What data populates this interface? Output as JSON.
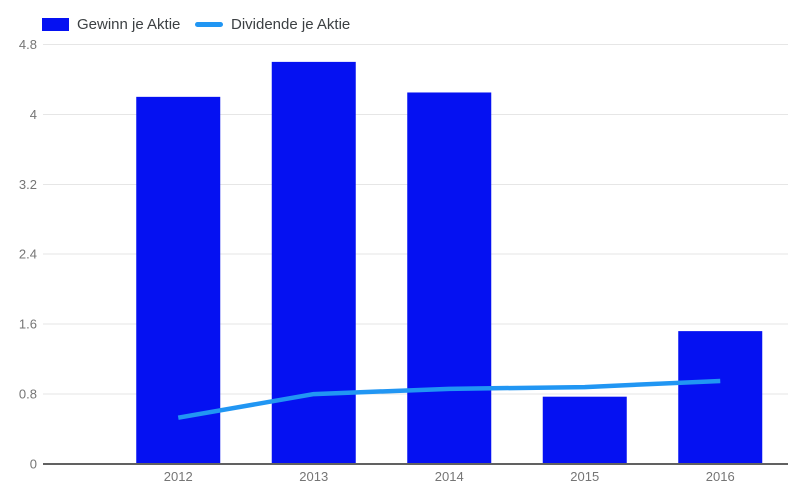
{
  "legend": {
    "items": [
      {
        "label": "Gewinn je Aktie",
        "swatch": "square",
        "color": "#0511f2"
      },
      {
        "label": "Dividende je Aktie",
        "swatch": "line",
        "color": "#2196f3"
      }
    ]
  },
  "chart_data": {
    "type": "combo-bar-line",
    "title": "",
    "xlabel": "",
    "ylabel": "",
    "categories": [
      "2012",
      "2013",
      "2014",
      "2015",
      "2016"
    ],
    "series": [
      {
        "name": "Gewinn je Aktie",
        "type": "bar",
        "color": "#0511f2",
        "values": [
          4.2,
          4.6,
          4.25,
          0.77,
          1.52
        ]
      },
      {
        "name": "Dividende je Aktie",
        "type": "line",
        "color": "#2196f3",
        "values": [
          0.53,
          0.8,
          0.86,
          0.88,
          0.95
        ]
      }
    ],
    "ylim": [
      0,
      4.8
    ],
    "yticks": [
      0,
      0.8,
      1.6,
      2.4,
      3.2,
      4,
      4.8
    ],
    "ytick_labels": [
      "0",
      "0.8",
      "1.6",
      "2.4",
      "3.2",
      "4",
      "4.8"
    ],
    "grid": true,
    "legend_position": "top-left"
  },
  "colors": {
    "bar": "#0511f2",
    "line": "#2196f3",
    "gridline": "#e6e6e6",
    "baseline": "#616161",
    "tick_label": "#757575",
    "legend_text": "#3c4043",
    "background": "#ffffff"
  }
}
